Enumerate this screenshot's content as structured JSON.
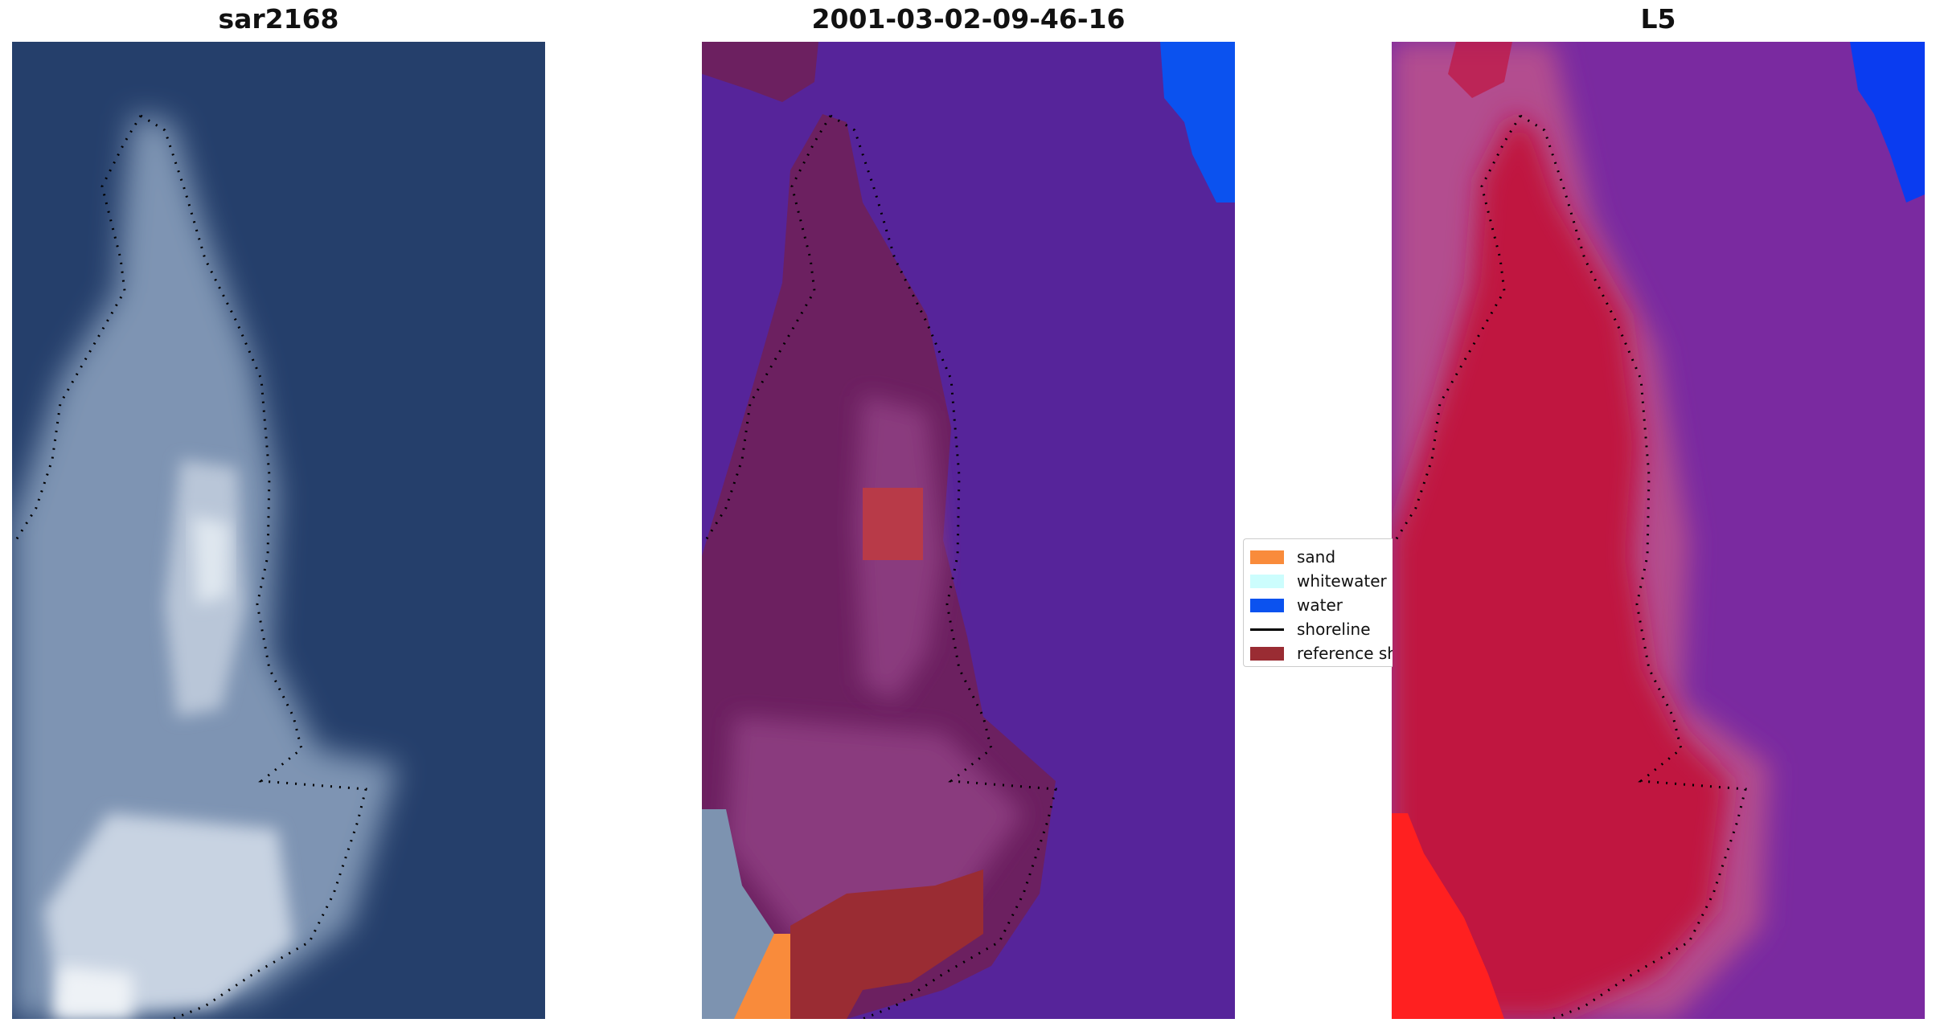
{
  "panels": [
    {
      "title": "sar2168"
    },
    {
      "title": "2001-03-02-09-46-16"
    },
    {
      "title": "L5"
    }
  ],
  "legend": {
    "items": [
      {
        "label": "sand",
        "color": "#f98b3b",
        "kind": "patch"
      },
      {
        "label": "whitewater",
        "color": "#ccfdfd",
        "kind": "patch"
      },
      {
        "label": "water",
        "color": "#0b52ef",
        "kind": "patch"
      },
      {
        "label": "shoreline",
        "color": "#000000",
        "kind": "line"
      },
      {
        "label": "reference shoreline buffer",
        "color": "#9a2c33",
        "kind": "patch"
      }
    ]
  },
  "colors": {
    "satellite_water": "#253f6b",
    "satellite_land": "#8fa6c2",
    "classified_water": "#56249a",
    "classified_land": "#6c2060",
    "classifier_red": "#b83a48",
    "l5_background": "#7a2aa0",
    "l5_land": "#c0143f",
    "l5_bright_red": "#ff2020",
    "l5_blue": "#0a3cf0"
  }
}
